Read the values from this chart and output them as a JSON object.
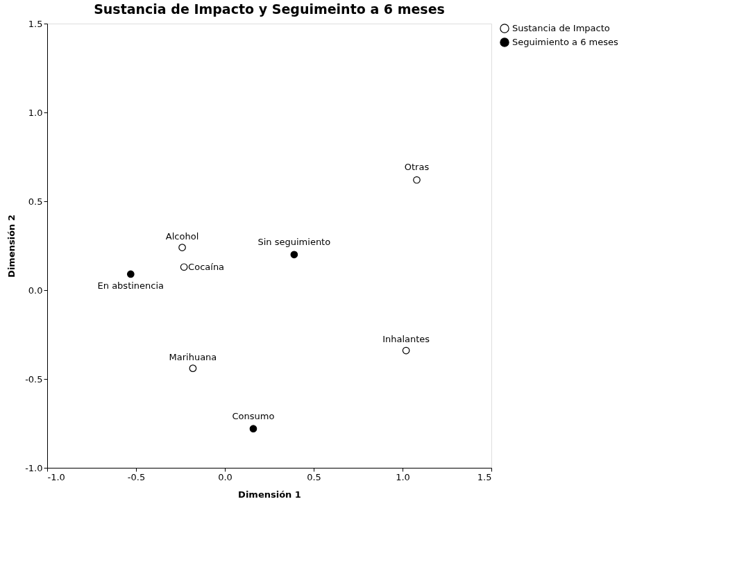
{
  "chart_data": {
    "type": "scatter",
    "title": "Sustancia de Impacto y Seguimeinto a 6 meses",
    "xlabel": "Dimensión 1",
    "ylabel": "Dimensión 2",
    "xlim": [
      -1.0,
      1.5
    ],
    "xticks": [
      {
        "value": -1.0,
        "label": "-1.0"
      },
      {
        "value": -0.5,
        "label": "-0.5"
      },
      {
        "value": 0,
        "label": "0.0"
      },
      {
        "value": 0.5,
        "label": "0.5"
      },
      {
        "value": 1.0,
        "label": "1.0"
      },
      {
        "value": 1.5,
        "label": "1.5"
      }
    ],
    "ylim": [
      -1.0,
      1.5
    ],
    "yticks": [
      {
        "value": -1.0,
        "label": "-1.0"
      },
      {
        "value": -0.5,
        "label": "-0.5"
      },
      {
        "value": 0,
        "label": "0.0"
      },
      {
        "value": 0.5,
        "label": "0.5"
      },
      {
        "value": 1.0,
        "label": "1.0"
      },
      {
        "value": 1.5,
        "label": "1.5"
      }
    ],
    "series": [
      {
        "name": "Sustancia de Impacto",
        "color": "#ffffff",
        "x": [
          -0.24,
          -0.23,
          -0.18,
          1.02,
          1.08
        ],
        "values": [
          0.24,
          0.13,
          -0.44,
          -0.34,
          0.62
        ]
      },
      {
        "name": "Seguimiento a 6 meses",
        "color": "#000000",
        "x": [
          -0.53,
          0.39,
          0.16
        ],
        "values": [
          0.09,
          0.2,
          -0.78
        ]
      }
    ],
    "annotations": [
      {
        "text": "Alcohol",
        "x": -0.24,
        "y": 0.24
      },
      {
        "text": "Cocaína",
        "x": -0.23,
        "y": 0.13
      },
      {
        "text": "Marihuana",
        "x": -0.18,
        "y": -0.44
      },
      {
        "text": "Inhalantes",
        "x": 1.02,
        "y": -0.34
      },
      {
        "text": "Otras",
        "x": 1.08,
        "y": 0.62
      },
      {
        "text": "En abstinencia",
        "x": -0.53,
        "y": 0.09
      },
      {
        "text": "Sin seguimiento",
        "x": 0.39,
        "y": 0.2
      },
      {
        "text": "Consumo",
        "x": 0.16,
        "y": -0.78
      }
    ],
    "marker": "circle",
    "grid": false,
    "legend": "top right"
  }
}
